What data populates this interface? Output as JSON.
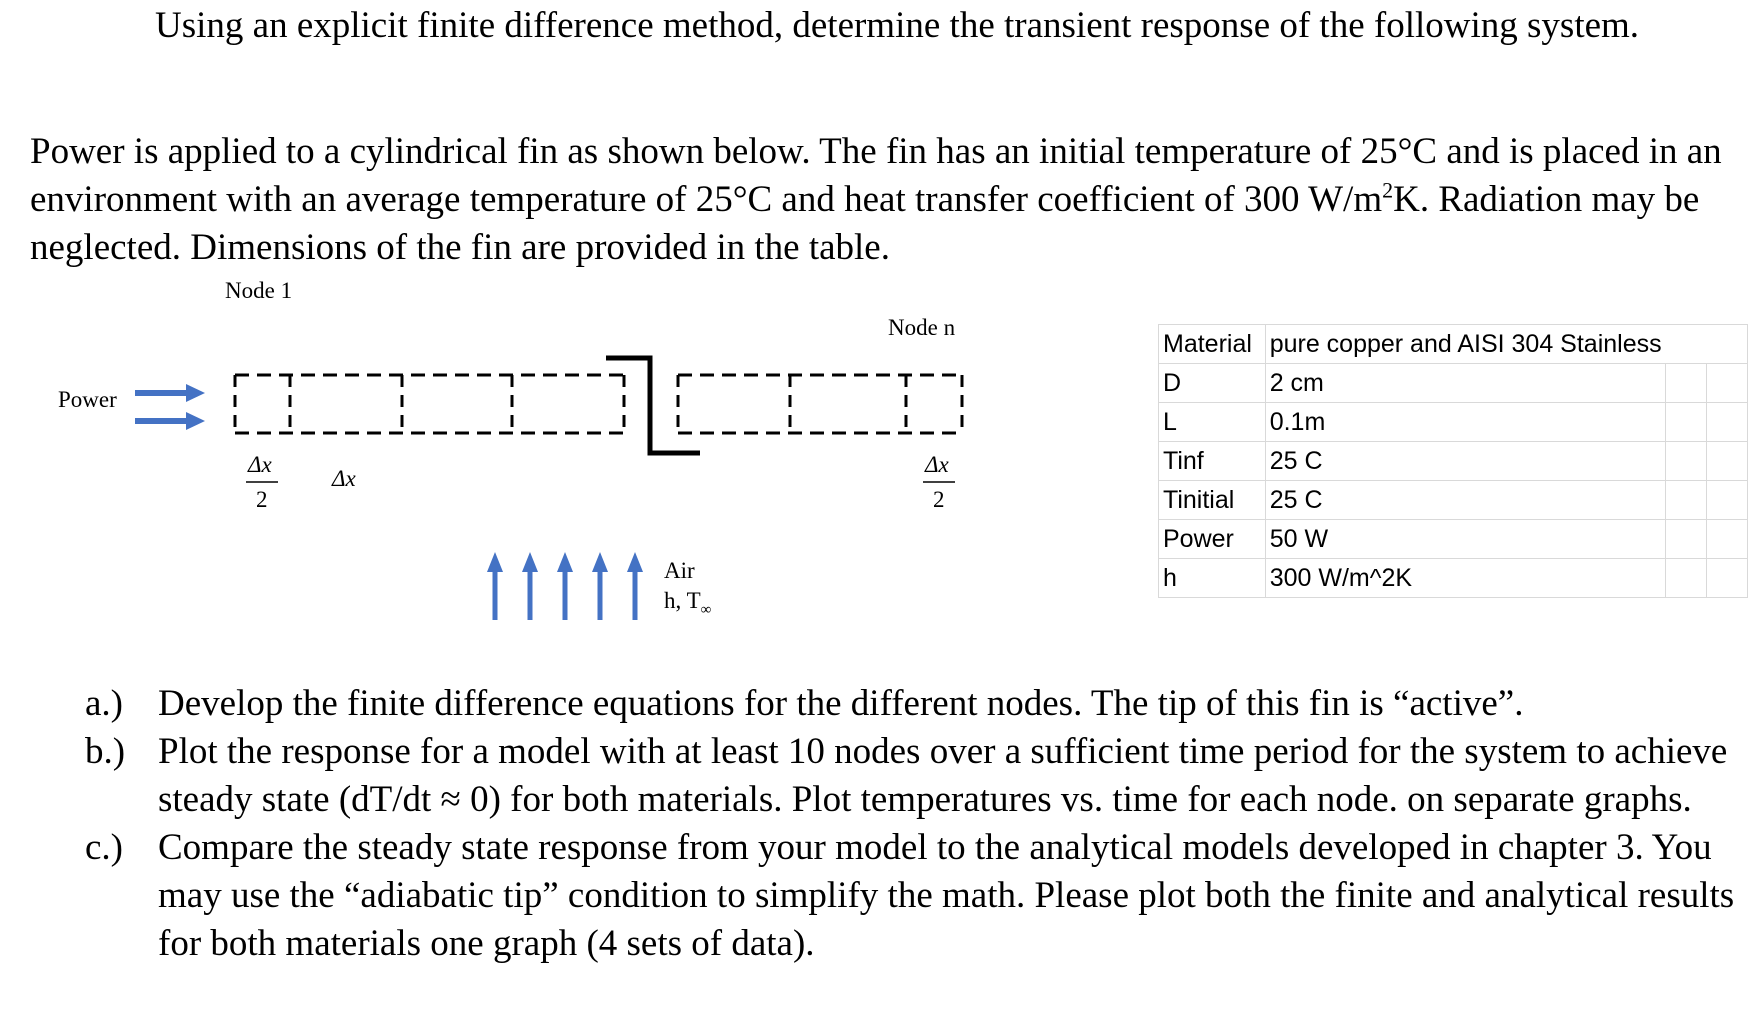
{
  "intro": {
    "text": "Using an explicit finite difference method, determine the transient response of the following system."
  },
  "problem": {
    "text_before_sup": "Power is applied to a cylindrical fin as shown below. The fin has an initial temperature of 25°C and is placed in an environment with an average temperature of 25°C and heat transfer coefficient of 300 W/m",
    "sup": "2",
    "text_after_sup": "K. Radiation may be neglected. Dimensions of the fin are provided in the table."
  },
  "diagram": {
    "node1_label": "Node 1",
    "noden_label": "Node n",
    "power_label": "Power",
    "dx_half_num": "Δx",
    "dx_half_den": "2",
    "dx_label": "Δx",
    "dx_end_num": "Δx",
    "dx_end_den": "2",
    "air_label": "Air",
    "h_label": "h, T",
    "inf_sub": "∞",
    "arrow_color": "#4472c4"
  },
  "table": {
    "rows": [
      [
        "Material",
        "pure copper and AISI 304 Stainless",
        "",
        ""
      ],
      [
        "D",
        "2 cm",
        "",
        ""
      ],
      [
        "L",
        "0.1m",
        "",
        ""
      ],
      [
        "Tinf",
        "25 C",
        "",
        ""
      ],
      [
        "Tinitial",
        "25 C",
        "",
        ""
      ],
      [
        "Power",
        "50 W",
        "",
        ""
      ],
      [
        "h",
        "300 W/m^2K",
        "",
        ""
      ]
    ]
  },
  "tasks": [
    {
      "label": "a.)",
      "text": "Develop the finite difference equations for the different nodes. The tip of this fin is “active”."
    },
    {
      "label": "b.)",
      "text": "Plot the response for a model with at least 10 nodes over a sufficient time period for the system to achieve steady state (dT/dt ≈ 0) for both materials. Plot temperatures vs. time for each node. on separate graphs."
    },
    {
      "label": "c.)",
      "text": "Compare the steady state response from your model to the analytical models developed in chapter 3. You may use the “adiabatic tip” condition to simplify the math. Please plot both the finite and analytical results for both materials one graph (4 sets of data)."
    }
  ]
}
